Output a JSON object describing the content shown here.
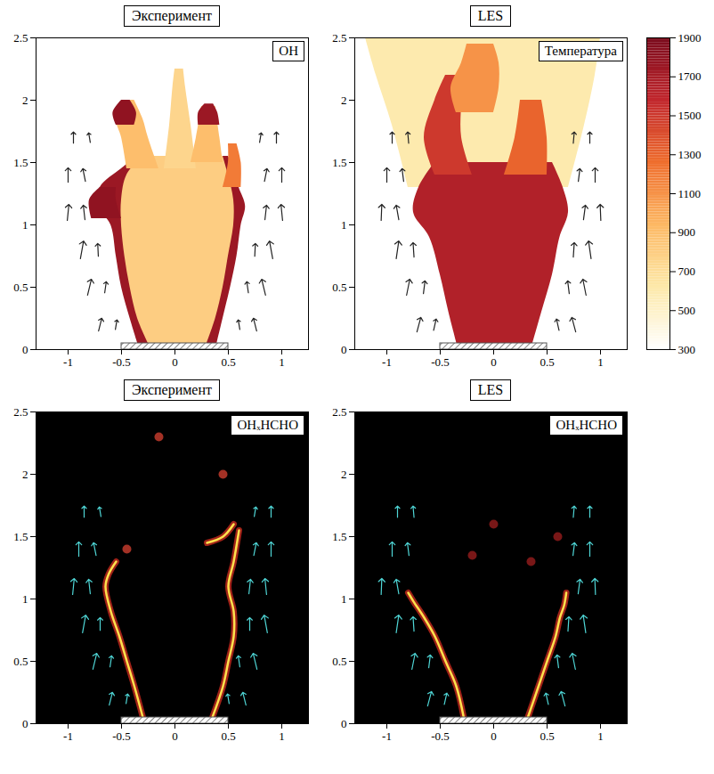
{
  "chart_data": [
    {
      "type": "heatmap",
      "title": "Эксперимент",
      "label": "OH",
      "xlim": [
        -1.3,
        1.25
      ],
      "xticks": [
        -1,
        -0.5,
        0,
        0.5,
        1
      ],
      "ylim": [
        0,
        2.5
      ],
      "yticks": [
        0,
        0.5,
        1,
        1.5,
        2,
        2.5
      ],
      "burner": [
        -0.5,
        0.5
      ],
      "regions": [
        {
          "value": 1750,
          "y": [
            0,
            0.25,
            0.5,
            0.75,
            1.0,
            1.15,
            1.3,
            1.45,
            1.55
          ],
          "x1": [
            -0.33,
            -0.42,
            -0.5,
            -0.55,
            -0.6,
            -0.72,
            -0.7,
            -0.5,
            -0.35
          ],
          "x2": [
            0.38,
            0.45,
            0.52,
            0.58,
            0.62,
            0.66,
            0.6,
            0.55,
            0.5
          ]
        },
        {
          "value": 800,
          "y": [
            0.05,
            0.25,
            0.5,
            0.75,
            1.0,
            1.2,
            1.4,
            1.55
          ],
          "x1": [
            -0.25,
            -0.35,
            -0.42,
            -0.47,
            -0.5,
            -0.5,
            -0.45,
            -0.3
          ],
          "x2": [
            0.3,
            0.38,
            0.45,
            0.5,
            0.55,
            0.55,
            0.5,
            0.45
          ]
        },
        {
          "value": 900,
          "y": [
            1.45,
            1.7,
            1.85,
            2.0
          ],
          "x1": [
            -0.45,
            -0.5,
            -0.55,
            -0.48
          ],
          "x2": [
            -0.15,
            -0.25,
            -0.3,
            -0.38
          ]
        },
        {
          "value": 1800,
          "y": [
            1.8,
            1.9,
            2.0
          ],
          "x1": [
            -0.55,
            -0.58,
            -0.5
          ],
          "x2": [
            -0.38,
            -0.36,
            -0.42
          ]
        },
        {
          "value": 750,
          "y": [
            1.45,
            1.8,
            2.1,
            2.25
          ],
          "x1": [
            -0.1,
            -0.05,
            -0.02,
            0.0
          ],
          "x2": [
            0.2,
            0.15,
            0.1,
            0.08
          ]
        },
        {
          "value": 900,
          "y": [
            1.5,
            1.7,
            1.95
          ],
          "x1": [
            0.15,
            0.2,
            0.25
          ],
          "x2": [
            0.45,
            0.42,
            0.38
          ]
        },
        {
          "value": 1750,
          "y": [
            1.8,
            1.9,
            1.97
          ],
          "x1": [
            0.22,
            0.22,
            0.28
          ],
          "x2": [
            0.42,
            0.4,
            0.36
          ]
        },
        {
          "value": 1200,
          "y": [
            1.3,
            1.5,
            1.65
          ],
          "x1": [
            0.45,
            0.5,
            0.5
          ],
          "x2": [
            0.62,
            0.62,
            0.58
          ]
        },
        {
          "value": 1800,
          "y": [
            1.05,
            1.2,
            1.3
          ],
          "x1": [
            -0.78,
            -0.8,
            -0.7
          ],
          "x2": [
            -0.5,
            -0.55,
            -0.55
          ]
        }
      ],
      "vectors": {
        "color": "#222222",
        "x": [
          -0.55,
          -0.7,
          -0.65,
          -0.8,
          -0.72,
          -0.87,
          -0.85,
          -1.0,
          -0.85,
          -1.0,
          -0.8,
          -0.95,
          0.6,
          0.75,
          0.68,
          0.83,
          0.75,
          0.9,
          0.85,
          1.0,
          0.85,
          1.0,
          0.8,
          0.95
        ],
        "y": [
          0.2,
          0.2,
          0.5,
          0.5,
          0.8,
          0.8,
          1.1,
          1.1,
          1.4,
          1.4,
          1.7,
          1.7,
          0.2,
          0.2,
          0.5,
          0.5,
          0.8,
          0.8,
          1.1,
          1.1,
          1.4,
          1.4,
          1.7,
          1.7
        ],
        "u": [
          0.05,
          0.1,
          0.05,
          0.12,
          -0.02,
          0.1,
          -0.05,
          0.05,
          -0.08,
          0.0,
          -0.05,
          0.0,
          -0.05,
          -0.1,
          -0.05,
          -0.12,
          0.02,
          -0.1,
          0.05,
          -0.05,
          0.08,
          0.0,
          0.05,
          0.0
        ],
        "v": [
          0.3,
          0.4,
          0.35,
          0.5,
          0.4,
          0.55,
          0.45,
          0.5,
          0.4,
          0.45,
          0.3,
          0.35,
          0.3,
          0.4,
          0.35,
          0.5,
          0.4,
          0.55,
          0.45,
          0.5,
          0.4,
          0.45,
          0.3,
          0.35
        ]
      }
    },
    {
      "type": "heatmap",
      "title": "LES",
      "label": "Температура",
      "xlim": [
        -1.3,
        1.25
      ],
      "xticks": [
        -1,
        -0.5,
        0,
        0.5,
        1
      ],
      "ylim": [
        0,
        2.5
      ],
      "yticks": [
        0,
        0.5,
        1,
        1.5,
        2,
        2.5
      ],
      "burner": [
        -0.5,
        0.5
      ],
      "colorbar": {
        "range": [
          300,
          1900
        ],
        "ticks": [
          300,
          500,
          700,
          900,
          1100,
          1300,
          1500,
          1700,
          1900
        ],
        "colors": [
          "#ffffff",
          "#fde9a9",
          "#fdb863",
          "#ef6d2d",
          "#c1272d",
          "#7a0a1c"
        ]
      },
      "regions": [
        {
          "value": 600,
          "y": [
            1.3,
            1.8,
            2.2,
            2.5
          ],
          "x1": [
            -0.8,
            -0.95,
            -1.1,
            -1.2
          ],
          "x2": [
            0.7,
            0.85,
            0.95,
            1.0
          ]
        },
        {
          "value": 1650,
          "y": [
            0,
            0.3,
            0.6,
            0.9,
            1.1,
            1.3,
            1.5
          ],
          "x1": [
            -0.33,
            -0.42,
            -0.5,
            -0.6,
            -0.75,
            -0.7,
            -0.55
          ],
          "x2": [
            0.35,
            0.45,
            0.55,
            0.62,
            0.7,
            0.65,
            0.55
          ]
        },
        {
          "value": 1500,
          "y": [
            1.4,
            1.7,
            2.0,
            2.2
          ],
          "x1": [
            -0.55,
            -0.65,
            -0.55,
            -0.45
          ],
          "x2": [
            -0.2,
            -0.3,
            -0.3,
            -0.3
          ]
        },
        {
          "value": 1100,
          "y": [
            1.9,
            2.1,
            2.3,
            2.45
          ],
          "x1": [
            -0.35,
            -0.4,
            -0.3,
            -0.25
          ],
          "x2": [
            0.0,
            0.05,
            0.05,
            0.0
          ]
        },
        {
          "value": 1300,
          "y": [
            1.4,
            1.7,
            2.0
          ],
          "x1": [
            0.1,
            0.2,
            0.25
          ],
          "x2": [
            0.5,
            0.5,
            0.45
          ]
        }
      ],
      "vectors": {
        "color": "#222222",
        "x": [
          -0.55,
          -0.7,
          -0.65,
          -0.8,
          -0.75,
          -0.9,
          -0.9,
          -1.05,
          -0.85,
          -1.0,
          -0.8,
          -0.95,
          0.6,
          0.75,
          0.7,
          0.85,
          0.75,
          0.9,
          0.85,
          1.0,
          0.8,
          0.95,
          0.75,
          0.9
        ],
        "y": [
          0.2,
          0.2,
          0.5,
          0.5,
          0.8,
          0.8,
          1.1,
          1.1,
          1.4,
          1.4,
          1.7,
          1.7,
          0.2,
          0.2,
          0.5,
          0.5,
          0.8,
          0.8,
          1.1,
          1.1,
          1.4,
          1.4,
          1.7,
          1.7
        ],
        "u": [
          0.08,
          0.12,
          0.05,
          0.1,
          -0.03,
          0.08,
          -0.08,
          0.02,
          -0.05,
          0.0,
          -0.03,
          0.0,
          -0.08,
          -0.12,
          -0.05,
          -0.1,
          0.03,
          -0.08,
          0.06,
          -0.02,
          0.05,
          0.0,
          0.03,
          0.0
        ],
        "v": [
          0.35,
          0.45,
          0.4,
          0.5,
          0.45,
          0.55,
          0.45,
          0.5,
          0.4,
          0.45,
          0.35,
          0.35,
          0.35,
          0.45,
          0.4,
          0.5,
          0.45,
          0.55,
          0.45,
          0.5,
          0.4,
          0.45,
          0.35,
          0.35
        ]
      }
    },
    {
      "type": "line",
      "title": "Эксперимент",
      "label": "OHₓHCHO",
      "xlim": [
        -1.3,
        1.25
      ],
      "xticks": [
        -1,
        -0.5,
        0,
        0.5,
        1
      ],
      "ylim": [
        0,
        2.5
      ],
      "yticks": [
        0,
        0.5,
        1,
        1.5,
        2,
        2.5
      ],
      "burner": [
        -0.5,
        0.5
      ],
      "color": "#ffe14d",
      "fronts": [
        {
          "x": [
            -0.3,
            -0.38,
            -0.45,
            -0.52,
            -0.6,
            -0.65,
            -0.62,
            -0.55
          ],
          "y": [
            0.05,
            0.3,
            0.5,
            0.7,
            0.9,
            1.1,
            1.2,
            1.3
          ]
        },
        {
          "x": [
            0.35,
            0.45,
            0.5,
            0.55,
            0.55,
            0.5,
            0.55,
            0.6
          ],
          "y": [
            0.05,
            0.3,
            0.5,
            0.7,
            0.9,
            1.1,
            1.3,
            1.55
          ]
        },
        {
          "x": [
            0.3,
            0.45,
            0.55
          ],
          "y": [
            1.45,
            1.5,
            1.6
          ]
        }
      ],
      "spots": {
        "color": "#c0392b",
        "x": [
          -0.45,
          0.45,
          -0.15
        ],
        "y": [
          1.4,
          2.0,
          2.3
        ]
      },
      "vectors": {
        "color": "#4fd6d6",
        "x": [
          -0.45,
          -0.6,
          -0.6,
          -0.75,
          -0.7,
          -0.85,
          -0.8,
          -0.95,
          -0.75,
          -0.9,
          -0.7,
          -0.85,
          0.5,
          0.65,
          0.6,
          0.75,
          0.7,
          0.85,
          0.7,
          0.85,
          0.75,
          0.9,
          0.75,
          0.9
        ],
        "y": [
          0.2,
          0.2,
          0.5,
          0.5,
          0.8,
          0.8,
          1.1,
          1.1,
          1.4,
          1.4,
          1.7,
          1.7,
          0.2,
          0.2,
          0.5,
          0.5,
          0.8,
          0.8,
          1.1,
          1.1,
          1.4,
          1.4,
          1.7,
          1.7
        ],
        "u": [
          0.05,
          0.1,
          0.05,
          0.12,
          0.0,
          0.1,
          -0.05,
          0.05,
          -0.08,
          0.0,
          -0.05,
          0.0,
          -0.05,
          -0.1,
          -0.05,
          -0.12,
          0.0,
          -0.1,
          0.05,
          -0.05,
          0.08,
          0.0,
          0.05,
          0.0
        ],
        "v": [
          0.3,
          0.4,
          0.35,
          0.5,
          0.4,
          0.55,
          0.45,
          0.5,
          0.4,
          0.45,
          0.3,
          0.35,
          0.3,
          0.4,
          0.35,
          0.5,
          0.4,
          0.55,
          0.45,
          0.5,
          0.4,
          0.45,
          0.3,
          0.35
        ]
      }
    },
    {
      "type": "line",
      "title": "LES",
      "label": "OHₓHCHO",
      "xlim": [
        -1.3,
        1.25
      ],
      "xticks": [
        -1,
        -0.5,
        0,
        0.5,
        1
      ],
      "ylim": [
        0,
        2.5
      ],
      "yticks": [
        0,
        0.5,
        1,
        1.5,
        2,
        2.5
      ],
      "burner": [
        -0.5,
        0.5
      ],
      "color": "#ffe14d",
      "fronts": [
        {
          "x": [
            -0.28,
            -0.35,
            -0.45,
            -0.55,
            -0.65,
            -0.75,
            -0.8
          ],
          "y": [
            0.05,
            0.3,
            0.5,
            0.7,
            0.85,
            0.98,
            1.05
          ]
        },
        {
          "x": [
            0.32,
            0.42,
            0.5,
            0.58,
            0.62,
            0.66,
            0.68
          ],
          "y": [
            0.05,
            0.3,
            0.5,
            0.7,
            0.85,
            0.95,
            1.05
          ]
        }
      ],
      "spots": {
        "color": "#8e1b1b",
        "x": [
          0.35,
          0.6,
          0.0,
          -0.2
        ],
        "y": [
          1.3,
          1.5,
          1.6,
          1.35
        ]
      },
      "vectors": {
        "color": "#4fd6d6",
        "x": [
          -0.45,
          -0.6,
          -0.6,
          -0.75,
          -0.75,
          -0.9,
          -0.9,
          -1.05,
          -0.8,
          -0.95,
          -0.75,
          -0.9,
          0.5,
          0.65,
          0.6,
          0.75,
          0.7,
          0.85,
          0.8,
          0.95,
          0.75,
          0.9,
          0.75,
          0.9
        ],
        "y": [
          0.2,
          0.2,
          0.5,
          0.5,
          0.8,
          0.8,
          1.1,
          1.1,
          1.4,
          1.4,
          1.7,
          1.7,
          0.2,
          0.2,
          0.5,
          0.5,
          0.8,
          0.8,
          1.1,
          1.1,
          1.4,
          1.4,
          1.7,
          1.7
        ],
        "u": [
          0.08,
          0.12,
          0.05,
          0.1,
          -0.03,
          0.08,
          -0.08,
          0.02,
          -0.05,
          0.0,
          -0.03,
          0.0,
          -0.08,
          -0.12,
          -0.05,
          -0.1,
          0.03,
          -0.08,
          0.06,
          -0.02,
          0.05,
          0.0,
          0.03,
          0.0
        ],
        "v": [
          0.35,
          0.45,
          0.4,
          0.5,
          0.45,
          0.55,
          0.45,
          0.5,
          0.4,
          0.45,
          0.35,
          0.35,
          0.35,
          0.45,
          0.4,
          0.5,
          0.45,
          0.55,
          0.45,
          0.5,
          0.4,
          0.45,
          0.35,
          0.35
        ]
      }
    }
  ]
}
